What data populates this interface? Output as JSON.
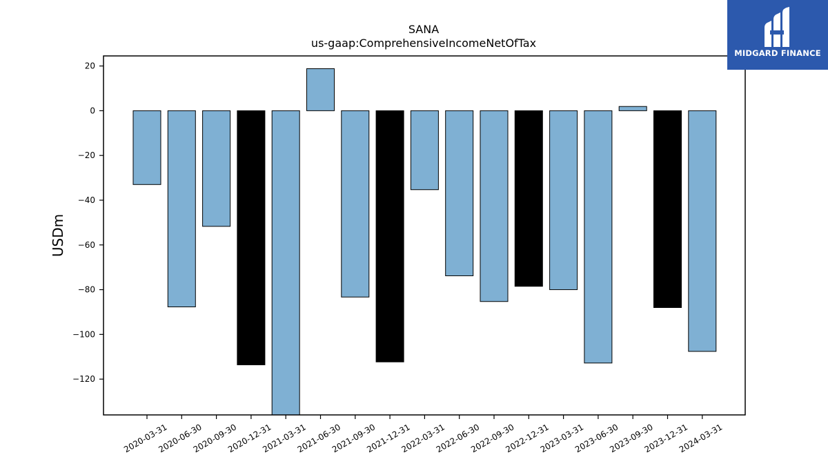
{
  "brand": {
    "name": "MIDGARD FINANCE",
    "color": "#2c59ad"
  },
  "chart_data": {
    "type": "bar",
    "title": "SANA",
    "subtitle": "us-gaap:ComprehensiveIncomeNetOfTax",
    "xlabel": "",
    "ylabel": "USDm",
    "ylim": [
      -136,
      24.5
    ],
    "yticks": [
      20,
      0,
      -20,
      -40,
      -60,
      -80,
      -100,
      -120
    ],
    "categories": [
      "2020-03-31",
      "2020-06-30",
      "2020-09-30",
      "2020-12-31",
      "2021-03-31",
      "2021-06-30",
      "2021-09-30",
      "2021-12-31",
      "2022-03-31",
      "2022-06-30",
      "2022-09-30",
      "2022-12-31",
      "2023-03-31",
      "2023-06-30",
      "2023-09-30",
      "2023-12-31",
      "2024-03-31"
    ],
    "values": [
      -33,
      -87.7,
      -51.7,
      -113.6,
      -136,
      18.8,
      -83.3,
      -112.3,
      -35.3,
      -73.8,
      -85.3,
      -78.5,
      -80,
      -112.8,
      1.9,
      -88,
      -107.6
    ],
    "bar_colors": [
      "#7fb0d3",
      "#7fb0d3",
      "#7fb0d3",
      "#000000",
      "#7fb0d3",
      "#7fb0d3",
      "#7fb0d3",
      "#000000",
      "#7fb0d3",
      "#7fb0d3",
      "#7fb0d3",
      "#000000",
      "#7fb0d3",
      "#7fb0d3",
      "#7fb0d3",
      "#000000",
      "#7fb0d3"
    ],
    "colors": {
      "quarter": "#7fb0d3",
      "year_end": "#000000",
      "edge": "#000000"
    },
    "grid": false,
    "legend": "none"
  }
}
